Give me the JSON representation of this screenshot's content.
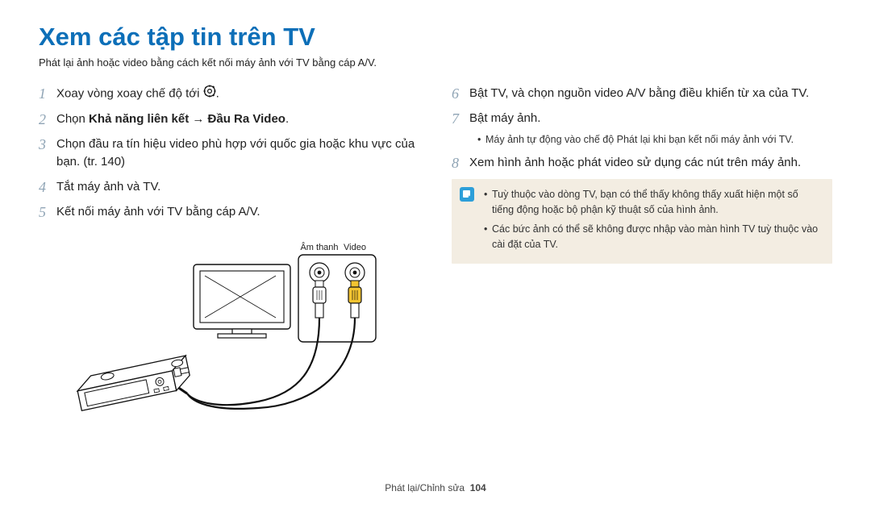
{
  "title": "Xem các tập tin trên TV",
  "subtitle": "Phát lại ảnh hoặc video bằng cách kết nối máy ảnh với TV bằng cáp A/V.",
  "left_steps": [
    {
      "n": "1",
      "text": "Xoay vòng xoay chế độ tới",
      "icon": "gear",
      "suffix": "."
    },
    {
      "n": "2",
      "html": "Chọn <b>Khả năng liên kết → Đầu Ra Video</b>."
    },
    {
      "n": "3",
      "text": "Chọn đầu ra tín hiệu video phù hợp với quốc gia hoặc khu vực của bạn. (tr. 140)"
    },
    {
      "n": "4",
      "text": "Tắt máy ảnh và TV."
    },
    {
      "n": "5",
      "text": "Kết nối máy ảnh với TV bằng cáp A/V."
    }
  ],
  "right_steps": [
    {
      "n": "6",
      "text": "Bật TV, và chọn nguồn video A/V bằng điều khiển từ xa của TV."
    },
    {
      "n": "7",
      "text": "Bật máy ảnh.",
      "sub": "Máy ảnh tự động vào chế độ Phát lại khi bạn kết nối máy ảnh với TV."
    },
    {
      "n": "8",
      "text": "Xem hình ảnh hoặc phát video sử dụng các nút trên máy ảnh."
    }
  ],
  "note_items": [
    "Tuỳ thuộc vào dòng TV, bạn có thể thấy không thấy xuất hiện một số tiếng động hoặc bộ phận kỹ thuật số của hình ảnh.",
    "Các bức ảnh có thể sẽ không được nhập vào màn hình TV tuỳ thuộc vào cài đặt của TV."
  ],
  "port_labels": {
    "audio": "Âm thanh",
    "video": "Video"
  },
  "footer": {
    "section": "Phát lại/Chỉnh sửa",
    "page": "104"
  },
  "colors": {
    "title": "#0d6fb8",
    "step_num": "#8fa4b5",
    "note_bg": "#f3ede2",
    "note_icon_bg": "#2d9fd9",
    "cable": "#111111",
    "plug_white": "#ffffff",
    "plug_yellow": "#f4c430",
    "device_fill": "#ffffff",
    "device_stroke": "#111111"
  }
}
